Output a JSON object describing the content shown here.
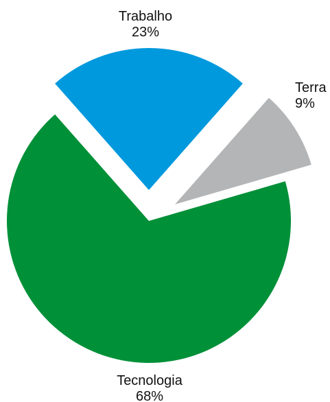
{
  "chart_data": {
    "type": "pie",
    "title": "",
    "slices": [
      {
        "label": "Trabalho",
        "value": 23,
        "value_label": "23%",
        "color": "#0099dd"
      },
      {
        "label": "Terra",
        "value": 9,
        "value_label": "9%",
        "color": "#b4b5b7"
      },
      {
        "label": "Tecnologia",
        "value": 68,
        "value_label": "68%",
        "color": "#009038"
      }
    ],
    "exploded": [
      "Trabalho",
      "Terra"
    ],
    "legend": "none"
  }
}
